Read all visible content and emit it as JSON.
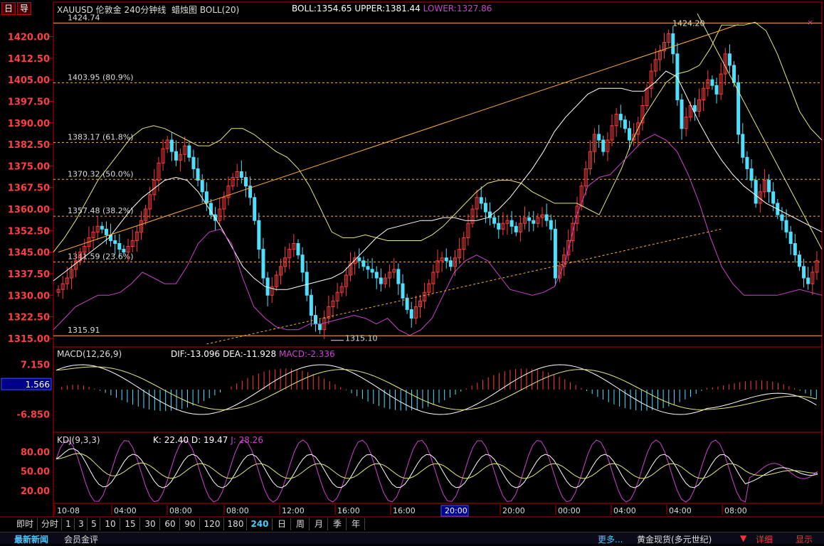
{
  "header": {
    "title": "XAUUSD 伦敦金 240分钟线",
    "chart_label": "蜡烛图 BOLL(20)",
    "boll": "BOLL:1354.65",
    "upper": "UPPER:1381.44",
    "lower": "LOWER:1327.86",
    "btn1": "日",
    "btn2": "导"
  },
  "macd_header": {
    "name": "MACD(12,26,9)",
    "dif": "DIF:-13.096",
    "dea": "DEA:-11.928",
    "macd": "MACD:-2.336"
  },
  "kdj_header": {
    "name": "KDJ(9,3,3)",
    "k": "K: 22.40",
    "d": "D: 19.47",
    "j": "J: 28.26"
  },
  "colors": {
    "up": "#ff3b3b",
    "down": "#4fe0ff",
    "boll_mid": "#ffffff",
    "boll_upper": "#e6e67a",
    "boll_lower": "#d040d0",
    "fib": "#ffb030",
    "frame": "#c00000",
    "axis_text": "#ff4040"
  },
  "chart_data": [
    {
      "type": "candlestick",
      "y_ticks": [
        1420.0,
        1412.5,
        1405.0,
        1397.5,
        1390.0,
        1382.5,
        1375.0,
        1367.5,
        1360.0,
        1352.5,
        1345.0,
        1337.5,
        1330.0,
        1322.5,
        1315.0
      ],
      "ylim": [
        1312,
        1432
      ],
      "fib_levels": [
        {
          "price": 1424.74,
          "label": "1424.74"
        },
        {
          "price": 1403.95,
          "label": "1403.95 (80.9%)"
        },
        {
          "price": 1383.17,
          "label": "1383.17 (61.8%)"
        },
        {
          "price": 1370.32,
          "label": "1370.32 (50.0%)"
        },
        {
          "price": 1357.48,
          "label": "1357.48 (38.2%)"
        },
        {
          "price": 1341.59,
          "label": "1341.59 (23.6%)"
        },
        {
          "price": 1315.91,
          "label": "1315.91"
        }
      ],
      "high_annotation": "1424.20",
      "low_annotation": "1315.10",
      "closes": [
        1332,
        1334,
        1336,
        1339,
        1342,
        1345,
        1347,
        1350,
        1352,
        1354,
        1353,
        1351,
        1349,
        1348,
        1346,
        1345,
        1347,
        1349,
        1352,
        1356,
        1360,
        1365,
        1370,
        1376,
        1381,
        1384,
        1380,
        1377,
        1379,
        1382,
        1378,
        1374,
        1370,
        1366,
        1362,
        1358,
        1356,
        1360,
        1364,
        1368,
        1371,
        1373,
        1371,
        1368,
        1364,
        1356,
        1346,
        1336,
        1330,
        1333,
        1337,
        1340,
        1343,
        1346,
        1348,
        1344,
        1338,
        1330,
        1323,
        1320,
        1318,
        1322,
        1326,
        1328,
        1331,
        1333,
        1337,
        1341,
        1343,
        1342,
        1340,
        1339,
        1338,
        1336,
        1334,
        1336,
        1338,
        1339,
        1334,
        1329,
        1325,
        1322,
        1326,
        1328,
        1331,
        1334,
        1338,
        1342,
        1343,
        1342,
        1340,
        1343,
        1346,
        1350,
        1355,
        1360,
        1364,
        1362,
        1359,
        1357,
        1355,
        1353,
        1355,
        1356,
        1354,
        1352,
        1355,
        1357,
        1356,
        1355,
        1357,
        1358,
        1356,
        1353,
        1336,
        1340,
        1344,
        1349,
        1355,
        1361,
        1368,
        1374,
        1380,
        1386,
        1384,
        1380,
        1384,
        1389,
        1393,
        1391,
        1388,
        1384,
        1386,
        1390,
        1396,
        1402,
        1408,
        1412,
        1415,
        1418,
        1421,
        1414,
        1398,
        1388,
        1392,
        1396,
        1394,
        1398,
        1402,
        1405,
        1403,
        1400,
        1407,
        1414,
        1410,
        1404,
        1386,
        1378,
        1374,
        1370,
        1362,
        1366,
        1370,
        1366,
        1362,
        1358,
        1356,
        1352,
        1348,
        1344,
        1340,
        1336,
        1334,
        1338,
        1342
      ],
      "boll_upper": [
        1345,
        1350,
        1356,
        1363,
        1370,
        1375,
        1380,
        1385,
        1388,
        1389,
        1388,
        1386,
        1384,
        1382,
        1382,
        1384,
        1388,
        1388,
        1386,
        1383,
        1380,
        1378,
        1374,
        1368,
        1360,
        1352,
        1350,
        1350,
        1351,
        1350,
        1349,
        1349,
        1349,
        1349,
        1351,
        1354,
        1358,
        1362,
        1366,
        1369,
        1370,
        1370,
        1369,
        1366,
        1364,
        1362,
        1362,
        1362,
        1360,
        1358,
        1366,
        1374,
        1384,
        1392,
        1398,
        1404,
        1407,
        1408,
        1410,
        1416,
        1424,
        1424,
        1424,
        1425,
        1422,
        1414,
        1404,
        1394,
        1388,
        1384
      ],
      "boll_mid": [
        1335,
        1338,
        1341,
        1344,
        1347,
        1350,
        1355,
        1360,
        1364,
        1367,
        1370,
        1371,
        1370,
        1366,
        1360,
        1354,
        1347,
        1340,
        1336,
        1333,
        1332,
        1332,
        1333,
        1334,
        1335,
        1336,
        1338,
        1342,
        1346,
        1350,
        1353,
        1354,
        1355,
        1356,
        1356,
        1357,
        1357,
        1356,
        1356,
        1357,
        1360,
        1364,
        1369,
        1374,
        1380,
        1387,
        1392,
        1396,
        1400,
        1402,
        1402,
        1402,
        1401,
        1401,
        1404,
        1408,
        1406,
        1398,
        1390,
        1383,
        1377,
        1372,
        1368,
        1365,
        1362,
        1360,
        1358,
        1356,
        1354,
        1352
      ],
      "boll_lower": [
        1318,
        1322,
        1326,
        1328,
        1330,
        1330,
        1331,
        1334,
        1338,
        1336,
        1334,
        1334,
        1340,
        1348,
        1352,
        1353,
        1348,
        1336,
        1326,
        1322,
        1319,
        1318,
        1318,
        1320,
        1320,
        1321,
        1322,
        1323,
        1322,
        1320,
        1322,
        1318,
        1316,
        1318,
        1322,
        1330,
        1338,
        1342,
        1344,
        1342,
        1337,
        1332,
        1331,
        1330,
        1331,
        1333,
        1342,
        1358,
        1368,
        1371,
        1372,
        1376,
        1380,
        1384,
        1386,
        1384,
        1380,
        1372,
        1362,
        1350,
        1340,
        1334,
        1330,
        1330,
        1330,
        1330,
        1331,
        1332,
        1331,
        1330
      ],
      "trend_up": {
        "from": [
          0,
          1345
        ],
        "to": [
          156,
          1424.2
        ]
      },
      "trend_dash": {
        "from": [
          34,
          1313
        ],
        "to": [
          152,
          1353
        ]
      }
    },
    {
      "type": "macd",
      "y_ticks": [
        7.15,
        1.566,
        -6.85
      ],
      "ylim": [
        -12,
        12
      ]
    },
    {
      "type": "kdj",
      "y_ticks": [
        80.0,
        50.0,
        20.0
      ],
      "ylim": [
        0,
        110
      ]
    }
  ],
  "xaxis_labels": [
    "10-08",
    "04:00",
    "08:00",
    "08:00",
    "12:00",
    "16:00",
    "16:00",
    "20:00",
    "20:00",
    "00:00",
    "04:00",
    "04:00",
    "08:00"
  ],
  "tabs": [
    "即时",
    "分时",
    "1",
    "3",
    "5",
    "10",
    "15",
    "30",
    "60",
    "90",
    "120",
    "180",
    "240",
    "日",
    "周",
    "月",
    "季",
    "年"
  ],
  "active_tab": "240",
  "status": {
    "news": "最新新闻",
    "review": "会员金评",
    "more": "更多...",
    "instrument": "黄金现货(多元世纪)",
    "detail": "详细",
    "show": "显示"
  }
}
